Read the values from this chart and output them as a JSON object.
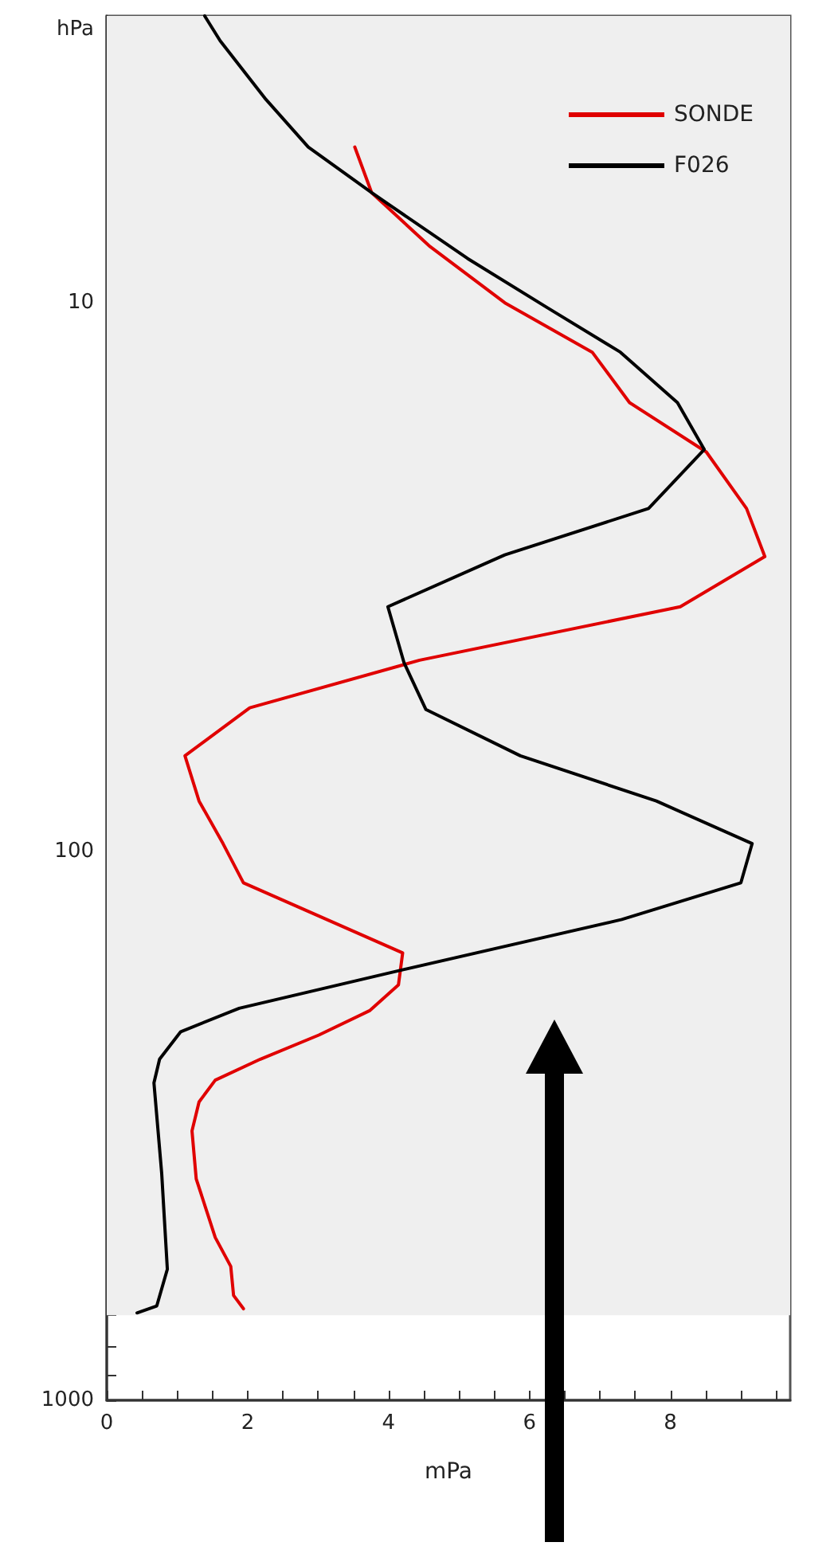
{
  "chart_data": {
    "type": "line",
    "xlabel": "mPa",
    "ylabel": "hPa",
    "series": [
      {
        "name": "SONDE",
        "color": "#e00000",
        "x": [
          3.52,
          3.76,
          4.59,
          5.65,
          6.89,
          7.42,
          8.51,
          9.08,
          9.34,
          8.14,
          4.44,
          2.03,
          1.11,
          1.31,
          1.65,
          1.94,
          4.2,
          4.14,
          3.73,
          3.01,
          2.18,
          1.54,
          1.31,
          1.21,
          1.27,
          1.54,
          1.76,
          1.8,
          1.94
        ],
        "values": [
          5.2,
          6.3,
          7.9,
          10,
          12.3,
          15.2,
          18.7,
          23.7,
          29,
          35.8,
          44.8,
          54.7,
          66.9,
          80.9,
          96.7,
          114,
          153,
          175,
          195,
          216,
          239,
          261,
          286,
          323,
          395,
          505,
          570,
          644,
          681
        ]
      },
      {
        "name": "F026",
        "color": "#000000",
        "x": [
          1.39,
          1.61,
          2.26,
          2.86,
          3.76,
          5.12,
          6.25,
          7.29,
          8.1,
          8.48,
          7.69,
          5.65,
          3.99,
          4.22,
          4.53,
          5.87,
          7.8,
          9.16,
          9.0,
          7.31,
          4.22,
          1.88,
          1.05,
          0.75,
          0.67,
          0.78,
          0.86,
          0.71,
          0.43
        ],
        "values": [
          3.0,
          3.33,
          4.26,
          5.2,
          6.3,
          8.3,
          10.2,
          12.3,
          15.2,
          18.5,
          23.7,
          28.8,
          35.8,
          45.3,
          55.1,
          66.9,
          80.9,
          96.7,
          114,
          133,
          164,
          193,
          213,
          239,
          264,
          386,
          577,
          673,
          693
        ]
      }
    ],
    "xlim": [
      0,
      9.7
    ],
    "xticks": [
      0,
      {
        "value": 0.5,
        "label": null
      },
      {
        "value": 1,
        "label": null
      },
      {
        "value": 1.5,
        "label": null
      },
      2,
      {
        "value": 2.5,
        "label": null
      },
      {
        "value": 3,
        "label": null
      },
      {
        "value": 3.5,
        "label": null
      },
      4,
      {
        "value": 4.5,
        "label": null
      },
      {
        "value": 5,
        "label": null
      },
      {
        "value": 5.5,
        "label": null
      },
      6,
      {
        "value": 6.5,
        "label": null
      },
      {
        "value": 7,
        "label": null
      },
      {
        "value": 7.5,
        "label": null
      },
      8,
      {
        "value": 8.5,
        "label": null
      },
      {
        "value": 9,
        "label": null
      },
      {
        "value": 9.5,
        "label": null
      }
    ],
    "ylim": [
      1000,
      3
    ],
    "log": "y",
    "yticks": [
      {
        "value": 3,
        "label": null
      },
      {
        "value": 4,
        "label": null
      },
      {
        "value": 5,
        "label": null
      },
      {
        "value": 6,
        "label": null
      },
      {
        "value": 7,
        "label": null
      },
      {
        "value": 8,
        "label": null
      },
      {
        "value": 9,
        "label": null
      },
      10,
      {
        "value": 20,
        "label": null
      },
      {
        "value": 30,
        "label": null
      },
      {
        "value": 40,
        "label": null
      },
      {
        "value": 50,
        "label": null
      },
      {
        "value": 60,
        "label": null
      },
      {
        "value": 70,
        "label": null
      },
      {
        "value": 80,
        "label": null
      },
      {
        "value": 90,
        "label": null
      },
      100,
      {
        "value": 200,
        "label": null
      },
      {
        "value": 300,
        "label": null
      },
      {
        "value": 400,
        "label": null
      },
      {
        "value": 500,
        "label": null
      },
      {
        "value": 600,
        "label": null
      },
      {
        "value": 700,
        "label": null
      },
      {
        "value": 800,
        "label": null
      },
      {
        "value": 900,
        "label": null
      },
      1000
    ],
    "bands": [
      {
        "axis": "y",
        "from": 700,
        "to": 3,
        "color": "#efefef"
      }
    ],
    "legend": "top right",
    "grid": false,
    "marker": "none",
    "line_style": "solid"
  }
}
